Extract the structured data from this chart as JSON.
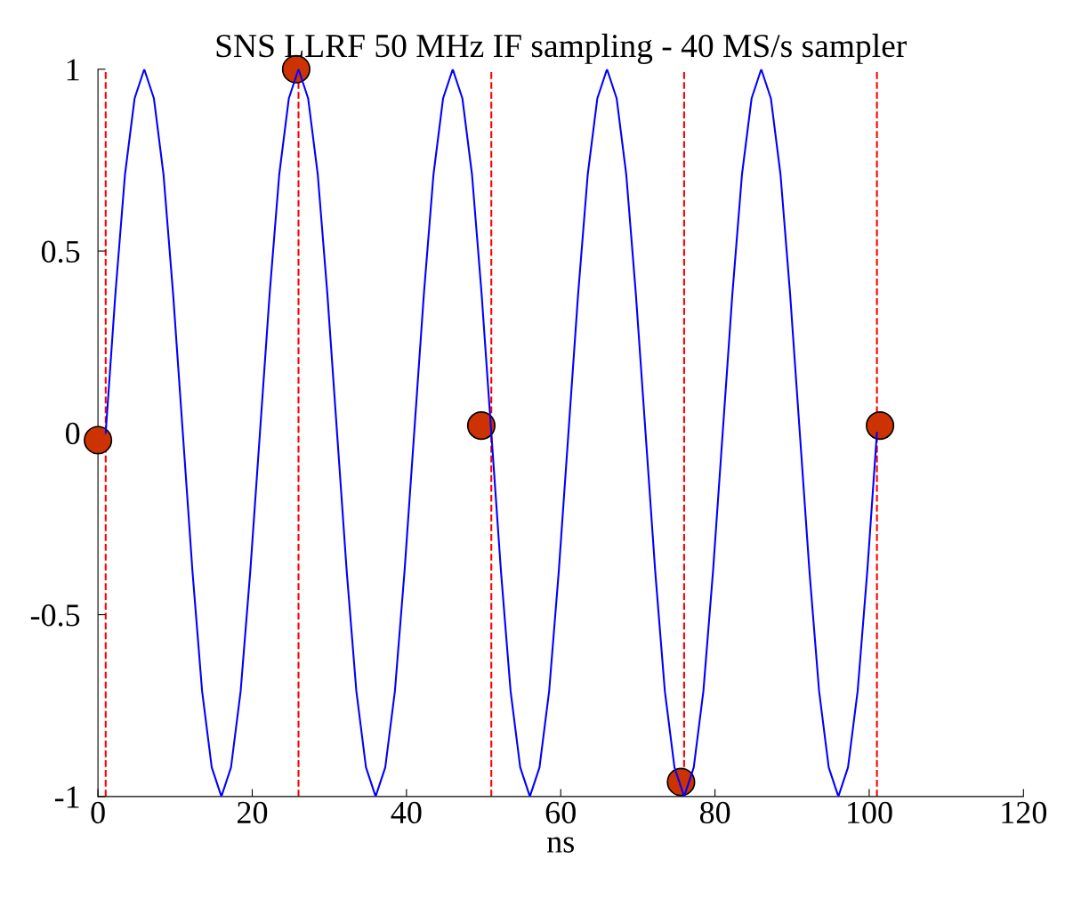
{
  "chart_data": {
    "type": "line",
    "title": "SNS LLRF 50 MHz IF sampling - 40 MS/s sampler",
    "xlabel": "ns",
    "xlim": [
      0,
      120
    ],
    "xticks": [
      0,
      20,
      40,
      60,
      80,
      100,
      120
    ],
    "ylim": [
      -1,
      1
    ],
    "yticks": [
      -1,
      -0.5,
      0,
      0.5,
      1
    ],
    "grid": false,
    "legend": false,
    "series": [
      {
        "color": "#0000ff",
        "marker": "none",
        "line_style": "solid",
        "x": [
          1,
          2.25,
          3.5,
          4.75,
          6,
          7.25,
          8.5,
          9.75,
          11,
          12.25,
          13.5,
          14.75,
          16,
          17.25,
          18.5,
          19.75,
          21,
          22.25,
          23.5,
          24.75,
          26,
          27.25,
          28.5,
          29.75,
          31,
          32.25,
          33.5,
          34.75,
          36,
          37.25,
          38.5,
          39.75,
          41,
          42.25,
          43.5,
          44.75,
          46,
          47.25,
          48.5,
          49.75,
          51,
          52.25,
          53.5,
          54.75,
          56,
          57.25,
          58.5,
          59.75,
          61,
          62.25,
          63.5,
          64.75,
          66,
          67.25,
          68.5,
          69.75,
          71,
          72.25,
          73.5,
          74.75,
          76,
          77.25,
          78.5,
          79.75,
          81,
          82.25,
          83.5,
          84.75,
          86,
          87.25,
          88.5,
          89.75,
          91,
          92.25,
          93.5,
          94.75,
          96,
          97.25,
          98.5,
          99.75,
          101
        ],
        "values": [
          0,
          0.38,
          0.71,
          0.92,
          1,
          0.92,
          0.71,
          0.38,
          0,
          -0.38,
          -0.71,
          -0.92,
          -1,
          -0.92,
          -0.71,
          -0.38,
          0,
          0.38,
          0.71,
          0.92,
          1,
          0.92,
          0.71,
          0.38,
          0,
          -0.38,
          -0.71,
          -0.92,
          -1,
          -0.92,
          -0.71,
          -0.38,
          0,
          0.38,
          0.71,
          0.92,
          1,
          0.92,
          0.71,
          0.38,
          0,
          -0.38,
          -0.71,
          -0.92,
          -1,
          -0.92,
          -0.71,
          -0.38,
          0,
          0.38,
          0.71,
          0.92,
          1,
          0.92,
          0.71,
          0.38,
          0,
          -0.38,
          -0.71,
          -0.92,
          -1,
          -0.92,
          -0.71,
          -0.38,
          0,
          0.38,
          0.71,
          0.92,
          1,
          0.92,
          0.71,
          0.38,
          0,
          -0.38,
          -0.71,
          -0.92,
          -1,
          -0.92,
          -0.71,
          -0.38,
          0
        ]
      },
      {
        "type": "scatter",
        "color": "#cc3300",
        "marker": "circle",
        "x": [
          0,
          25.7,
          49.7,
          75.6,
          101.4
        ],
        "values": [
          -0.02,
          1.0,
          0.02,
          -0.96,
          0.02
        ]
      }
    ],
    "ref_lines": [
      {
        "axis": "x",
        "value": 1,
        "color": "#ff0000",
        "line_style": "dashed"
      },
      {
        "axis": "x",
        "value": 26,
        "color": "#ff0000",
        "line_style": "dashed"
      },
      {
        "axis": "x",
        "value": 51,
        "color": "#ff0000",
        "line_style": "dashed"
      },
      {
        "axis": "x",
        "value": 76,
        "color": "#ff0000",
        "line_style": "dashed"
      },
      {
        "axis": "x",
        "value": 101,
        "color": "#ff0000",
        "line_style": "dashed"
      }
    ]
  }
}
